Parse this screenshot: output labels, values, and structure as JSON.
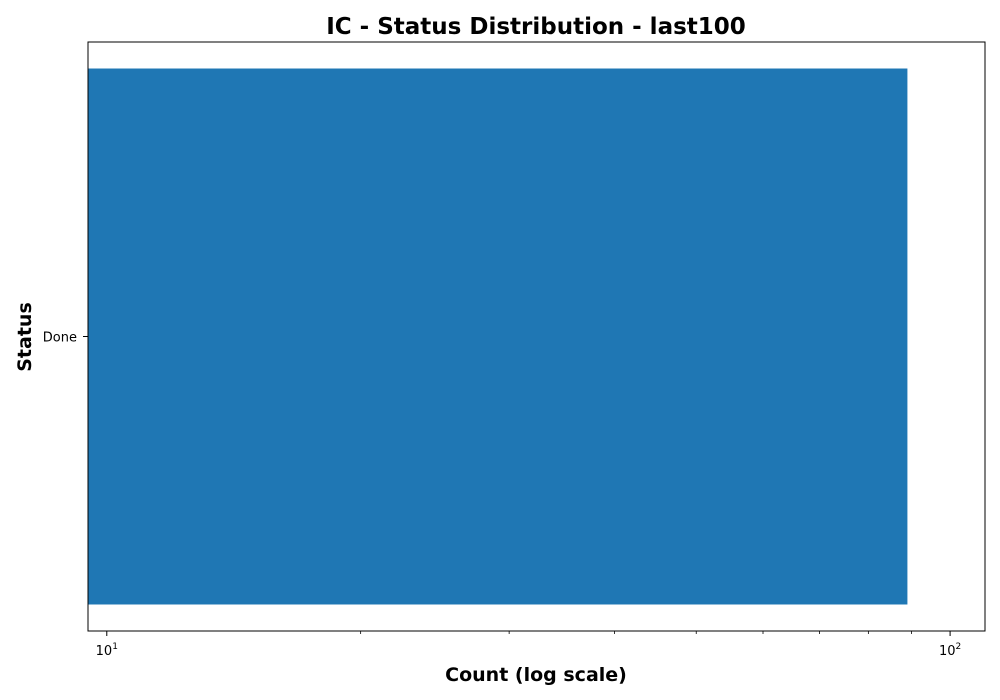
{
  "chart_data": {
    "type": "bar",
    "orientation": "horizontal",
    "title": "IC - Status Distribution - last100",
    "xlabel": "Count (log scale)",
    "ylabel": "Status",
    "xscale": "log",
    "xlim": [
      9.5,
      110
    ],
    "categories": [
      "Done"
    ],
    "values": [
      89
    ],
    "x_major_ticks": [
      {
        "value": 10,
        "base": "10",
        "exp": "1"
      },
      {
        "value": 100,
        "base": "10",
        "exp": "2"
      }
    ],
    "x_minor_ticks": [
      20,
      30,
      40,
      50,
      60,
      70,
      80,
      90
    ],
    "grid": false,
    "bar_color": "#1f77b4"
  }
}
